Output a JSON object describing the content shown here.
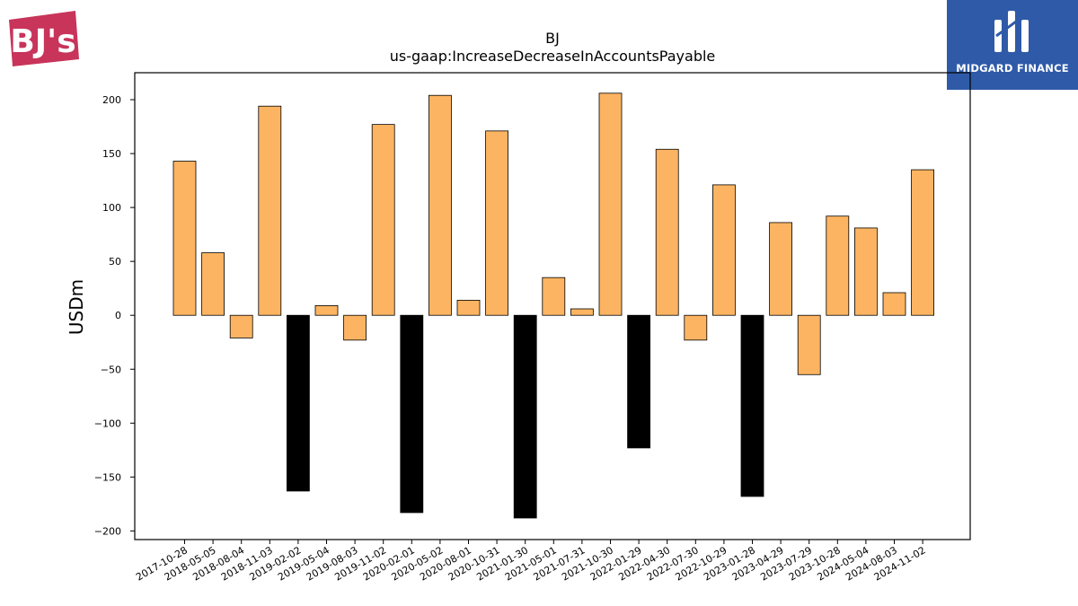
{
  "logos": {
    "left_text": "BJ's",
    "right_text": "MIDGARD FINANCE"
  },
  "colors": {
    "positive": "#fdb462",
    "negative": "#000000",
    "edge": "#000000",
    "midgard_blue": "#2f5aa8",
    "bjs_red": "#c8345a"
  },
  "chart_data": {
    "type": "bar",
    "title": "BJ",
    "subtitle": "us-gaap:IncreaseDecreaseInAccountsPayable",
    "xlabel": "",
    "ylabel": "USDm",
    "ylim": [
      -208,
      225
    ],
    "yticks": [
      -200,
      -150,
      -100,
      -50,
      0,
      50,
      100,
      150,
      200
    ],
    "grid": false,
    "legend": "none",
    "categories": [
      "2017-10-28",
      "2018-05-05",
      "2018-08-04",
      "2018-11-03",
      "2019-02-02",
      "2019-05-04",
      "2019-08-03",
      "2019-11-02",
      "2020-02-01",
      "2020-05-02",
      "2020-08-01",
      "2020-10-31",
      "2021-01-30",
      "2021-05-01",
      "2021-07-31",
      "2021-10-30",
      "2022-01-29",
      "2022-04-30",
      "2022-07-30",
      "2022-10-29",
      "2023-01-28",
      "2023-04-29",
      "2023-07-29",
      "2023-10-28",
      "2024-05-04",
      "2024-08-03",
      "2024-11-02"
    ],
    "values": [
      143,
      58,
      -21,
      194,
      -163,
      9,
      -23,
      177,
      -183,
      204,
      14,
      171,
      -188,
      35,
      6,
      206,
      -123,
      154,
      -23,
      121,
      -168,
      86,
      -55,
      92,
      81,
      21,
      135
    ],
    "q4_negative_color_dates": [
      "2019-02-02",
      "2020-02-01",
      "2021-01-30",
      "2022-01-29",
      "2023-01-28"
    ]
  }
}
